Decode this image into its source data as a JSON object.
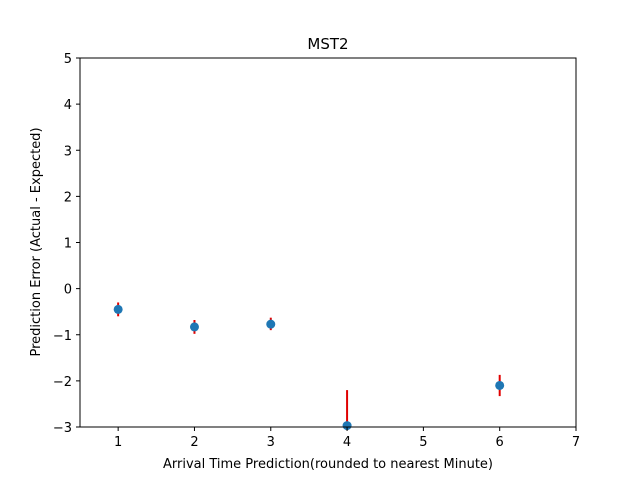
{
  "chart_data": {
    "type": "scatter",
    "title": "MST2",
    "xlabel": "Arrival Time Prediction(rounded to nearest Minute)",
    "ylabel": "Prediction Error (Actual - Expected)",
    "xlim": [
      0.5,
      7
    ],
    "ylim": [
      -3,
      5
    ],
    "xticks": [
      1,
      2,
      3,
      4,
      5,
      6,
      7
    ],
    "yticks": [
      -3,
      -2,
      -1,
      0,
      1,
      2,
      3,
      4,
      5
    ],
    "grid": false,
    "x": [
      1,
      2,
      3,
      4,
      6
    ],
    "y": [
      -0.45,
      -0.83,
      -0.77,
      -2.97,
      -2.1
    ],
    "error_low": [
      -0.6,
      -0.98,
      -0.9,
      -2.97,
      -2.33
    ],
    "error_high": [
      -0.3,
      -0.68,
      -0.63,
      -2.2,
      -1.87
    ],
    "marker_color": "#1f77b4",
    "error_color": "#e00000"
  }
}
